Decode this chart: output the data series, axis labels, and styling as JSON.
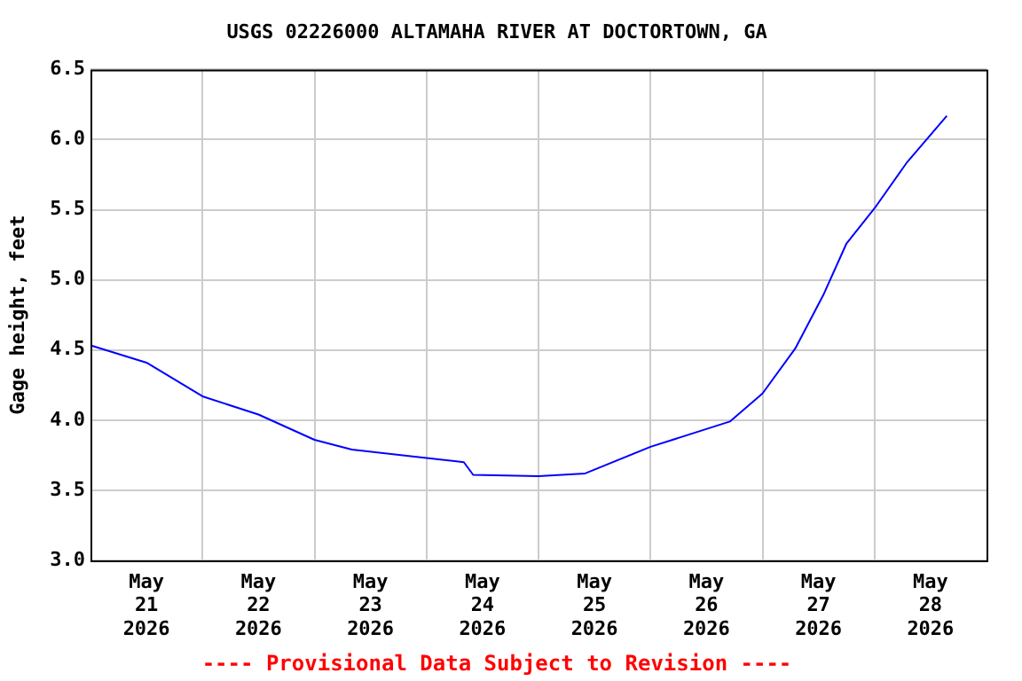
{
  "chart_data": {
    "type": "line",
    "title": "USGS 02226000 ALTAMAHA RIVER AT DOCTORTOWN, GA",
    "ylabel": "Gage height, feet",
    "annotations": [
      "---- Provisional Data Subject to Revision ----"
    ],
    "x": [
      "2026-05-21T00:20",
      "2026-05-21T12:00",
      "2026-05-22T00:00",
      "2026-05-22T12:00",
      "2026-05-23T00:00",
      "2026-05-23T08:00",
      "2026-05-24T00:00",
      "2026-05-24T08:00",
      "2026-05-24T10:00",
      "2026-05-25T00:00",
      "2026-05-25T10:00",
      "2026-05-26T00:00",
      "2026-05-26T17:00",
      "2026-05-27T00:00",
      "2026-05-27T07:00",
      "2026-05-27T13:00",
      "2026-05-27T18:00",
      "2026-05-28T00:00",
      "2026-05-28T07:00",
      "2026-05-28T15:30"
    ],
    "series": [
      {
        "color": "#0000ff",
        "values": [
          4.53,
          4.41,
          4.17,
          4.04,
          3.86,
          3.79,
          3.73,
          3.7,
          3.61,
          3.6,
          3.62,
          3.81,
          3.99,
          4.19,
          4.51,
          4.89,
          5.26,
          5.51,
          5.84,
          6.17
        ]
      }
    ],
    "xlim": [
      "2026-05-21",
      "2026-05-29"
    ],
    "xticks": [
      {
        "value": "2026-05-21T12:00",
        "label": "May 21 2026"
      },
      {
        "value": "2026-05-22T12:00",
        "label": "May 22 2026"
      },
      {
        "value": "2026-05-23T12:00",
        "label": "May 23 2026"
      },
      {
        "value": "2026-05-24T12:00",
        "label": "May 24 2026"
      },
      {
        "value": "2026-05-25T12:00",
        "label": "May 25 2026"
      },
      {
        "value": "2026-05-26T12:00",
        "label": "May 26 2026"
      },
      {
        "value": "2026-05-27T12:00",
        "label": "May 27 2026"
      },
      {
        "value": "2026-05-28T12:00",
        "label": "May 28 2026"
      },
      {
        "value": "2026-05-22",
        "label": null
      },
      {
        "value": "2026-05-23",
        "label": null
      },
      {
        "value": "2026-05-24",
        "label": null
      },
      {
        "value": "2026-05-25",
        "label": null
      },
      {
        "value": "2026-05-26",
        "label": null
      },
      {
        "value": "2026-05-27",
        "label": null
      },
      {
        "value": "2026-05-28",
        "label": null
      }
    ],
    "ylim": [
      3.0,
      6.5
    ],
    "yticks": [
      {
        "value": 3,
        "label": "3.0"
      },
      {
        "value": 3.5,
        "label": "3.5"
      },
      {
        "value": 4,
        "label": "4.0"
      },
      {
        "value": 4.5,
        "label": "4.5"
      },
      {
        "value": 5,
        "label": "5.0"
      },
      {
        "value": 5.5,
        "label": "5.5"
      },
      {
        "value": 6,
        "label": "6.0"
      },
      {
        "value": 6.5,
        "label": "6.5"
      }
    ],
    "grid": true,
    "marker": "none",
    "line_style": "solid"
  }
}
